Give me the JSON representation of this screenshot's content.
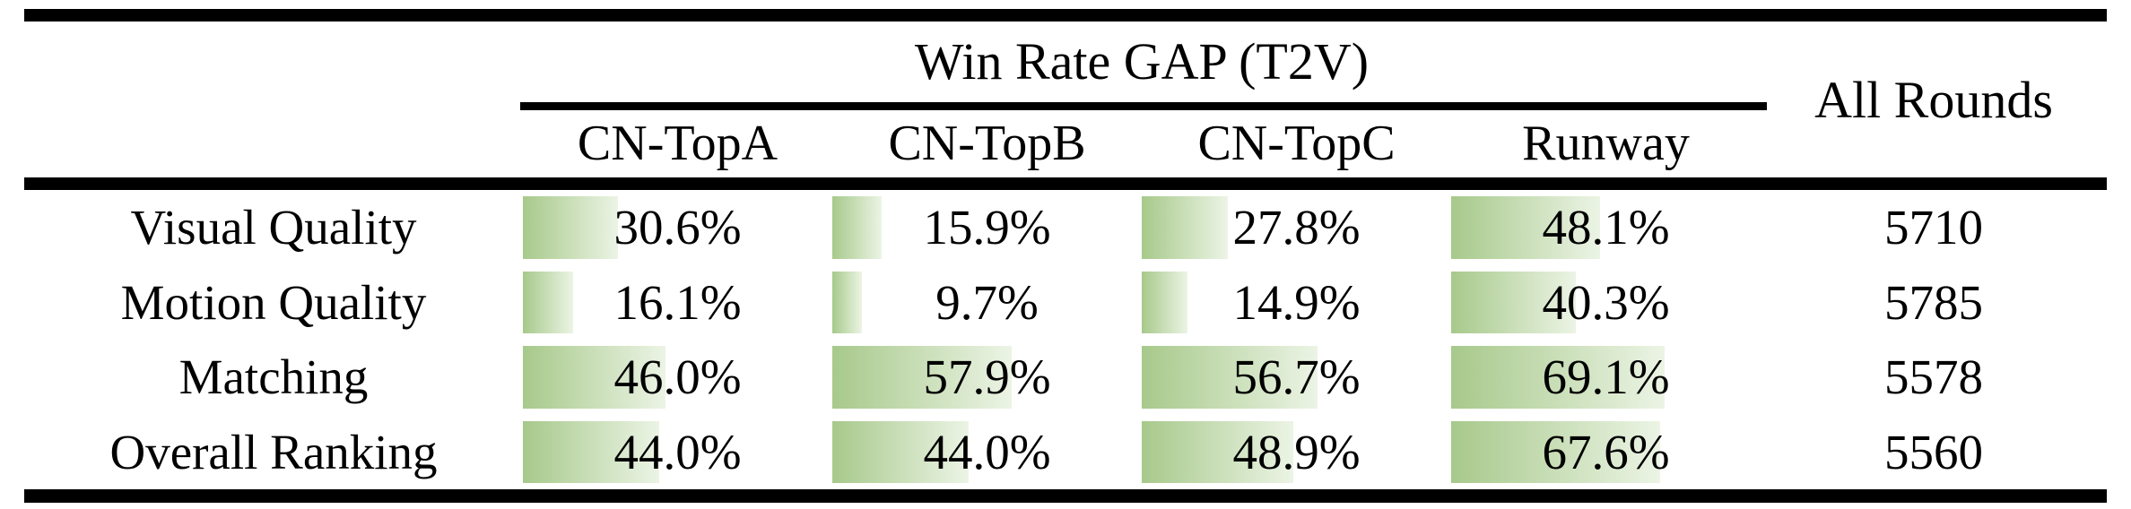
{
  "table": {
    "group_header": "Win Rate GAP (T2V)",
    "all_rounds_header": "All Rounds",
    "columns": [
      "CN-TopA",
      "CN-TopB",
      "CN-TopC",
      "Runway"
    ],
    "rows": [
      {
        "label": "Visual Quality",
        "values": [
          "30.6%",
          "15.9%",
          "27.8%",
          "48.1%"
        ],
        "all_rounds": "5710"
      },
      {
        "label": "Motion Quality",
        "values": [
          "16.1%",
          "9.7%",
          "14.9%",
          "40.3%"
        ],
        "all_rounds": "5785"
      },
      {
        "label": "Matching",
        "values": [
          "46.0%",
          "57.9%",
          "56.7%",
          "69.1%"
        ],
        "all_rounds": "5578"
      },
      {
        "label": "Overall Ranking",
        "values": [
          "44.0%",
          "44.0%",
          "48.9%",
          "67.6%"
        ],
        "all_rounds": "5560"
      }
    ],
    "colors": {
      "bar_start": "#a7c98b",
      "bar_end": "#ecf4e5",
      "rule": "#000000"
    }
  },
  "chart_data": {
    "type": "table",
    "title": "Win Rate GAP (T2V)",
    "categories": [
      "Visual Quality",
      "Motion Quality",
      "Matching",
      "Overall Ranking"
    ],
    "series": [
      {
        "name": "CN-TopA",
        "values": [
          30.6,
          16.1,
          46.0,
          44.0
        ],
        "unit": "%"
      },
      {
        "name": "CN-TopB",
        "values": [
          15.9,
          9.7,
          57.9,
          44.0
        ],
        "unit": "%"
      },
      {
        "name": "CN-TopC",
        "values": [
          27.8,
          14.9,
          56.7,
          48.9
        ],
        "unit": "%"
      },
      {
        "name": "Runway",
        "values": [
          48.1,
          40.3,
          69.1,
          67.6
        ],
        "unit": "%"
      },
      {
        "name": "All Rounds",
        "values": [
          5710,
          5785,
          5578,
          5560
        ],
        "unit": "rounds"
      }
    ],
    "layout": "data bars behind percentage values, bar width proportional to value (100% = column width), green gradient fading left to right"
  }
}
